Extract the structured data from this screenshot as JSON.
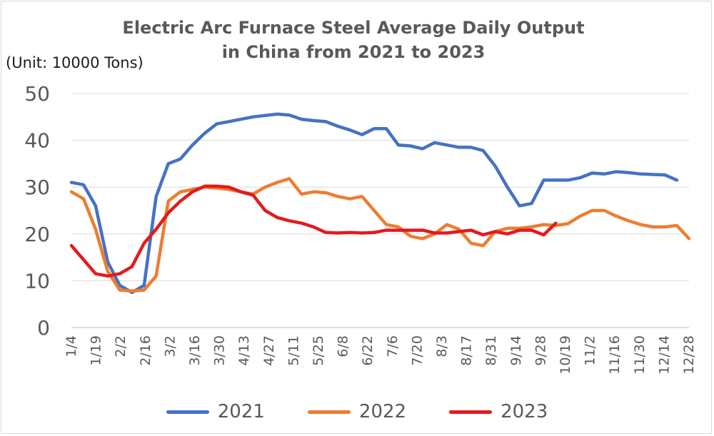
{
  "chart_data": {
    "type": "line",
    "title_line1": "Electric Arc Furnace Steel Average Daily Output",
    "title_line2": "in China from 2021 to 2023",
    "unit_label": "(Unit: 10000 Tons)",
    "ylim": [
      0,
      50
    ],
    "yticks": [
      0,
      10,
      20,
      30,
      40,
      50
    ],
    "grid": true,
    "legend_position": "bottom",
    "xlabels": [
      "1/4",
      "1/19",
      "2/2",
      "2/16",
      "3/2",
      "3/16",
      "3/30",
      "4/13",
      "4/27",
      "5/11",
      "5/25",
      "6/8",
      "6/22",
      "7/6",
      "7/20",
      "8/3",
      "8/17",
      "8/31",
      "9/14",
      "9/28",
      "10/19",
      "11/2",
      "11/16",
      "11/30",
      "12/14",
      "12/28"
    ],
    "x_range": [
      0,
      51
    ],
    "series": [
      {
        "name": "2021",
        "color": "#4472c4",
        "points": [
          [
            0,
            31
          ],
          [
            1,
            30.5
          ],
          [
            2,
            26
          ],
          [
            3,
            14
          ],
          [
            4,
            9
          ],
          [
            5,
            7.5
          ],
          [
            6,
            9
          ],
          [
            7,
            28
          ],
          [
            8,
            35
          ],
          [
            9,
            36
          ],
          [
            10,
            39
          ],
          [
            11,
            41.5
          ],
          [
            12,
            43.5
          ],
          [
            13,
            44
          ],
          [
            14,
            44.5
          ],
          [
            15,
            45
          ],
          [
            16,
            45.3
          ],
          [
            17,
            45.6
          ],
          [
            18,
            45.4
          ],
          [
            19,
            44.5
          ],
          [
            20,
            44.2
          ],
          [
            21,
            44
          ],
          [
            22,
            43
          ],
          [
            23,
            42.2
          ],
          [
            24,
            41.2
          ],
          [
            25,
            42.5
          ],
          [
            26,
            42.5
          ],
          [
            27,
            39
          ],
          [
            28,
            38.8
          ],
          [
            29,
            38.2
          ],
          [
            30,
            39.5
          ],
          [
            31,
            39
          ],
          [
            32,
            38.5
          ],
          [
            33,
            38.5
          ],
          [
            34,
            37.8
          ],
          [
            35,
            34.5
          ],
          [
            36,
            30
          ],
          [
            37,
            26
          ],
          [
            38,
            26.5
          ],
          [
            39,
            31.5
          ],
          [
            40,
            31.5
          ],
          [
            41,
            31.5
          ],
          [
            42,
            32
          ],
          [
            43,
            33
          ],
          [
            44,
            32.8
          ],
          [
            45,
            33.3
          ],
          [
            46,
            33.1
          ],
          [
            47,
            32.8
          ],
          [
            48,
            32.7
          ],
          [
            49,
            32.6
          ],
          [
            50,
            31.5
          ]
        ]
      },
      {
        "name": "2022",
        "color": "#ed7d31",
        "points": [
          [
            0,
            29
          ],
          [
            1,
            27.5
          ],
          [
            2,
            21
          ],
          [
            3,
            12
          ],
          [
            4,
            8
          ],
          [
            5,
            7.8
          ],
          [
            6,
            8
          ],
          [
            7,
            11
          ],
          [
            8,
            27
          ],
          [
            9,
            29
          ],
          [
            10,
            29.5
          ],
          [
            11,
            30
          ],
          [
            12,
            29.8
          ],
          [
            13,
            29.5
          ],
          [
            14,
            29
          ],
          [
            15,
            28.5
          ],
          [
            16,
            30
          ],
          [
            17,
            31
          ],
          [
            18,
            31.8
          ],
          [
            19,
            28.5
          ],
          [
            20,
            29
          ],
          [
            21,
            28.8
          ],
          [
            22,
            28
          ],
          [
            23,
            27.5
          ],
          [
            24,
            28
          ],
          [
            25,
            25
          ],
          [
            26,
            22
          ],
          [
            27,
            21.5
          ],
          [
            28,
            19.5
          ],
          [
            29,
            19
          ],
          [
            30,
            20
          ],
          [
            31,
            22
          ],
          [
            32,
            21
          ],
          [
            33,
            18
          ],
          [
            34,
            17.5
          ],
          [
            35,
            20.5
          ],
          [
            36,
            21.2
          ],
          [
            37,
            21.2
          ],
          [
            38,
            21.5
          ],
          [
            39,
            22
          ],
          [
            40,
            21.8
          ],
          [
            41,
            22.2
          ],
          [
            42,
            23.8
          ],
          [
            43,
            25
          ],
          [
            44,
            25
          ],
          [
            45,
            23.8
          ],
          [
            46,
            22.8
          ],
          [
            47,
            22
          ],
          [
            48,
            21.5
          ],
          [
            49,
            21.5
          ],
          [
            50,
            21.8
          ],
          [
            51,
            19
          ]
        ]
      },
      {
        "name": "2023",
        "color": "#e31a1c",
        "points": [
          [
            0,
            17.5
          ],
          [
            1,
            14.5
          ],
          [
            2,
            11.5
          ],
          [
            3,
            11
          ],
          [
            4,
            11.5
          ],
          [
            5,
            13
          ],
          [
            6,
            18
          ],
          [
            7,
            21
          ],
          [
            8,
            24.5
          ],
          [
            9,
            27
          ],
          [
            10,
            29
          ],
          [
            11,
            30.2
          ],
          [
            12,
            30.2
          ],
          [
            13,
            30
          ],
          [
            14,
            29
          ],
          [
            15,
            28.3
          ],
          [
            16,
            25
          ],
          [
            17,
            23.5
          ],
          [
            18,
            22.8
          ],
          [
            19,
            22.3
          ],
          [
            20,
            21.5
          ],
          [
            21,
            20.3
          ],
          [
            22,
            20.2
          ],
          [
            23,
            20.3
          ],
          [
            24,
            20.2
          ],
          [
            25,
            20.3
          ],
          [
            26,
            20.8
          ],
          [
            27,
            20.8
          ],
          [
            28,
            20.8
          ],
          [
            29,
            20.8
          ],
          [
            30,
            20.2
          ],
          [
            31,
            20.2
          ],
          [
            32,
            20.5
          ],
          [
            33,
            20.8
          ],
          [
            34,
            19.8
          ],
          [
            35,
            20.5
          ],
          [
            36,
            20
          ],
          [
            37,
            20.8
          ],
          [
            38,
            20.8
          ],
          [
            39,
            19.8
          ],
          [
            40,
            22.3
          ]
        ]
      }
    ]
  }
}
